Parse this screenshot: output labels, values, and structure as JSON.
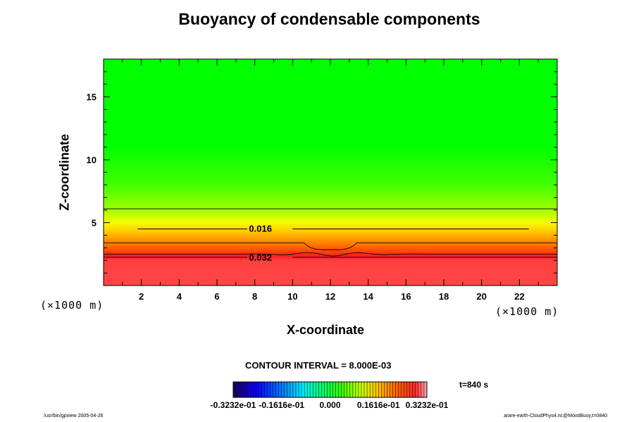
{
  "chart_data": {
    "type": "heatmap",
    "title": "Buoyancy of condensable components",
    "xlabel": "X-coordinate",
    "ylabel": "Z-coordinate",
    "x_unit": "(×1000 m)",
    "y_unit": "(×1000 m)",
    "xlim": [
      0,
      24
    ],
    "ylim": [
      0,
      18
    ],
    "x_ticks": [
      2,
      4,
      6,
      8,
      10,
      12,
      14,
      16,
      18,
      20,
      22
    ],
    "y_ticks": [
      5,
      10,
      15
    ],
    "contour_interval": "CONTOUR INTERVAL = 8.000E-03",
    "time_label": "t=840 s",
    "contour_labels": [
      {
        "text": "0.016",
        "x": 8,
        "z": 4.5
      },
      {
        "text": "0.032",
        "x": 8,
        "z": 2.2
      }
    ],
    "vertical_profile": [
      {
        "z": 0.0,
        "value": 0.034
      },
      {
        "z": 2.2,
        "value": 0.032
      },
      {
        "z": 2.5,
        "value": 0.029
      },
      {
        "z": 3.4,
        "value": 0.024
      },
      {
        "z": 4.5,
        "value": 0.016
      },
      {
        "z": 6.1,
        "value": 0.008
      },
      {
        "z": 9.0,
        "value": 0.002
      },
      {
        "z": 12.0,
        "value": 0.0
      },
      {
        "z": 18.0,
        "value": 0.0
      }
    ],
    "colorbar": {
      "min": -0.03232,
      "max": 0.03232,
      "tick_labels": [
        "-0.3232e-01",
        "-0.1616e-01",
        "0.000",
        "0.1616e-01",
        "0.3232e-01"
      ]
    }
  },
  "footer": {
    "left": "/usr/bin/gpview 2005-04-26",
    "right": "arare-earth-CloudPhys4.nc@MoistBuoy,t=0840"
  }
}
